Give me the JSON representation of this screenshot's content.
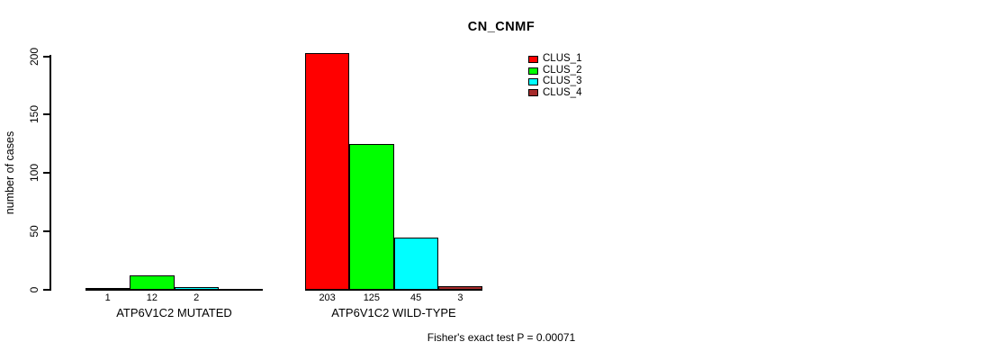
{
  "chart_data": {
    "type": "bar",
    "title": "CN_CNMF",
    "ylabel": "number of cases",
    "ylim": [
      0,
      200
    ],
    "yticks": [
      0,
      50,
      100,
      150,
      200
    ],
    "grid": false,
    "legend_position": "top-right",
    "categories": [
      "ATP6V1C2 MUTATED",
      "ATP6V1C2 WILD-TYPE"
    ],
    "series": [
      {
        "name": "CLUS_1",
        "color": "#FF0000",
        "values": [
          1,
          203
        ]
      },
      {
        "name": "CLUS_2",
        "color": "#00FF00",
        "values": [
          12,
          125
        ]
      },
      {
        "name": "CLUS_3",
        "color": "#00FFFF",
        "values": [
          2,
          45
        ]
      },
      {
        "name": "CLUS_4",
        "color": "#A52A2A",
        "values": [
          0,
          3
        ]
      }
    ],
    "bar_labels": [
      [
        "1",
        "12",
        "2",
        ""
      ],
      [
        "203",
        "125",
        "45",
        "3"
      ]
    ],
    "annotation": "Fisher's exact test P = 0.00071"
  }
}
